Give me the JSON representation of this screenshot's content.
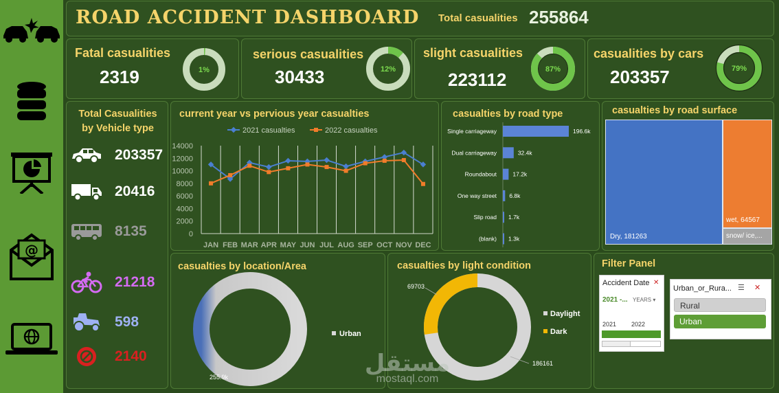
{
  "title": "ROAD ACCIDENT DASHBOARD",
  "total": {
    "label": "Total casualities",
    "value": "255864"
  },
  "kpis": [
    {
      "label": "Fatal casualities",
      "value": "2319",
      "pct": "1%",
      "pct_value": 1
    },
    {
      "label": "serious casualities",
      "value": "30433",
      "pct": "12%",
      "pct_value": 12
    },
    {
      "label": "slight casualities",
      "value": "223112",
      "pct": "87%",
      "pct_value": 87
    },
    {
      "label": "casualities by cars",
      "value": "203357",
      "pct": "79%",
      "pct_value": 79
    }
  ],
  "vehicle": {
    "title_line1": "Total Casualities",
    "title_line2": "by Vehicle type",
    "rows": [
      {
        "icon": "car-icon",
        "value": "203357",
        "color": "#ffffff"
      },
      {
        "icon": "truck-icon",
        "value": "20416",
        "color": "#ffffff"
      },
      {
        "icon": "bus-icon",
        "value": "8135",
        "color": "#9a9a9a"
      },
      {
        "icon": "bicycle-icon",
        "value": "21218",
        "color": "#d46bf2"
      },
      {
        "icon": "tractor-icon",
        "value": "598",
        "color": "#9eb1f3"
      },
      {
        "icon": "other-vehicle-icon",
        "value": "2140",
        "color": "#d92020"
      }
    ]
  },
  "line_chart": {
    "title": "current year vs pervious year casualties",
    "legend": [
      "2021 casualties",
      "2022 casualties"
    ]
  },
  "road_type": {
    "title": "casualties by road type"
  },
  "surface": {
    "title": "casualties by road surface",
    "dry": "Dry, 181263",
    "wet": "wet, 64567",
    "snow": "snow/ ice,..."
  },
  "location": {
    "title": "casualties by location/Area",
    "legend": "Urban",
    "label": "255.9k"
  },
  "light": {
    "title": "casualties by light condition",
    "legend": [
      "Daylight",
      "Dark"
    ],
    "dark_label": "69703",
    "day_label": "186161"
  },
  "filter": {
    "title": "Filter Panel",
    "date_title": "Accident Date",
    "date_range": "2021 -...",
    "date_unit": "YEARS",
    "years": [
      "2021",
      "2022"
    ],
    "area_title": "Urban_or_Rura...",
    "options": [
      "Rural",
      "Urban"
    ]
  },
  "watermark": {
    "arabic": "مستقل",
    "site": "mostaql.com"
  },
  "colors": {
    "accent": "#f5d46a",
    "series2021": "#4a7fd0",
    "series2022": "#f07c2a",
    "bar": "#5b84d6",
    "panel": "#2f5120"
  },
  "chart_data": [
    {
      "type": "line",
      "title": "current year vs pervious year casualties",
      "categories": [
        "JAN",
        "FEB",
        "MAR",
        "APR",
        "MAY",
        "JUN",
        "JUL",
        "AUG",
        "SEP",
        "OCT",
        "NOV",
        "DEC"
      ],
      "series": [
        {
          "name": "2021 casualties",
          "values": [
            11000,
            8700,
            11300,
            10600,
            11600,
            11500,
            11700,
            10700,
            11500,
            12200,
            12900,
            11000
          ]
        },
        {
          "name": "2022 casualties",
          "values": [
            8000,
            9300,
            10800,
            9800,
            10400,
            11000,
            10600,
            10000,
            11200,
            11600,
            11700,
            7900
          ]
        }
      ],
      "ylim": [
        0,
        14000
      ],
      "yticks": [
        0,
        2000,
        4000,
        6000,
        8000,
        10000,
        12000,
        14000
      ]
    },
    {
      "type": "bar",
      "title": "casualties by road type",
      "categories": [
        "Single carriageway",
        "Dual carriageway",
        "Roundabout",
        "One way street",
        "Slip road",
        "(blank)"
      ],
      "values": [
        196.6,
        32.4,
        17.2,
        6.8,
        1.7,
        1.3
      ],
      "labels": [
        "196.6k",
        "32.4k",
        "17.2k",
        "6.8k",
        "1.7k",
        "1.3k"
      ]
    },
    {
      "type": "pie",
      "title": "casualties by location/Area",
      "categories": [
        "Urban"
      ],
      "values": [
        255900
      ]
    },
    {
      "type": "pie",
      "title": "casualties by light condition",
      "categories": [
        "Daylight",
        "Dark"
      ],
      "values": [
        186161,
        69703
      ]
    }
  ]
}
